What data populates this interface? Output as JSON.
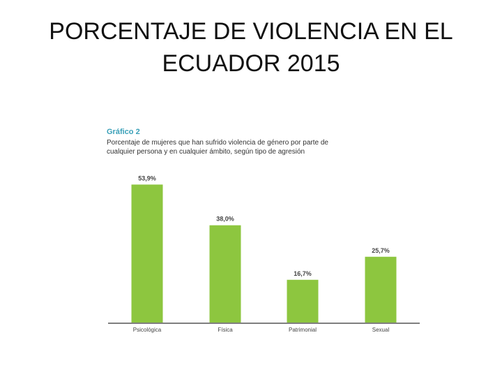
{
  "slide": {
    "title_line1": "PORCENTAJE DE VIOLENCIA EN EL",
    "title_line2": "ECUADOR 2015"
  },
  "chart_data": {
    "type": "bar",
    "title": "Gráfico 2",
    "subtitle": "Porcentaje de mujeres que han sufrido violencia de género por parte de cualquier persona y en cualquier ámbito, según tipo de agresión",
    "categories": [
      "Psicológica",
      "Física",
      "Patrimonial",
      "Sexual"
    ],
    "values": [
      53.9,
      38.0,
      16.7,
      25.7
    ],
    "value_labels": [
      "53,9%",
      "38,0%",
      "16,7%",
      "25,7%"
    ],
    "bar_color": "#8dc63f",
    "heading_color": "#3aa0b8",
    "ylim": [
      0,
      60
    ],
    "grid": false,
    "legend": "none"
  }
}
